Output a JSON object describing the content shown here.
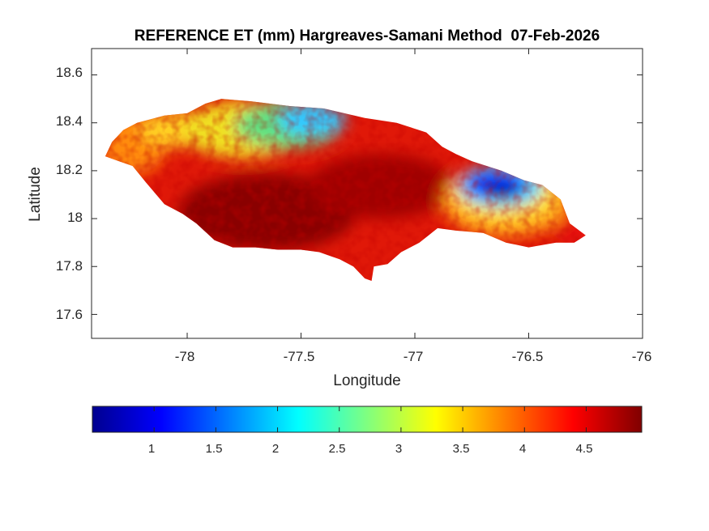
{
  "figure": {
    "title": "REFERENCE ET (mm) Hargreaves-Samani Method  07-Feb-2026",
    "xlabel": "Longitude",
    "ylabel": "Latitude",
    "xticks": [
      "-78",
      "-77.5",
      "-77",
      "-76.5",
      "-76"
    ],
    "yticks": [
      "18.6",
      "18.4",
      "18.2",
      "18",
      "17.8",
      "17.6"
    ],
    "colorbar_ticks": [
      "1",
      "1.5",
      "2",
      "2.5",
      "3",
      "3.5",
      "4",
      "4.5"
    ],
    "colormap": "jet"
  },
  "chart_data": {
    "type": "heatmap",
    "title": "REFERENCE ET (mm) Hargreaves-Samani Method  07-Feb-2026",
    "xlabel": "Longitude",
    "ylabel": "Latitude",
    "xlim": [
      -78.42,
      -76
    ],
    "ylim": [
      17.5,
      18.71
    ],
    "xticks": [
      -78,
      -77.5,
      -77,
      -76.5,
      -76
    ],
    "yticks": [
      17.6,
      17.8,
      18,
      18.2,
      18.4,
      18.6
    ],
    "colorbar": {
      "range": [
        0.5,
        4.95
      ],
      "ticks": [
        1,
        1.5,
        2,
        2.5,
        3,
        3.5,
        4,
        4.5
      ],
      "colormap": "jet",
      "placement": "bottom"
    },
    "region": "Jamaica",
    "outline": [
      [
        -78.36,
        18.26
      ],
      [
        -78.33,
        18.32
      ],
      [
        -78.28,
        18.37
      ],
      [
        -78.22,
        18.4
      ],
      [
        -78.1,
        18.43
      ],
      [
        -78.0,
        18.44
      ],
      [
        -77.92,
        18.48
      ],
      [
        -77.85,
        18.5
      ],
      [
        -77.72,
        18.49
      ],
      [
        -77.55,
        18.47
      ],
      [
        -77.4,
        18.46
      ],
      [
        -77.22,
        18.42
      ],
      [
        -77.08,
        18.4
      ],
      [
        -76.95,
        18.36
      ],
      [
        -76.88,
        18.3
      ],
      [
        -76.82,
        18.27
      ],
      [
        -76.75,
        18.24
      ],
      [
        -76.62,
        18.2
      ],
      [
        -76.52,
        18.16
      ],
      [
        -76.44,
        18.14
      ],
      [
        -76.36,
        18.08
      ],
      [
        -76.32,
        17.98
      ],
      [
        -76.25,
        17.93
      ],
      [
        -76.3,
        17.9
      ],
      [
        -76.38,
        17.9
      ],
      [
        -76.5,
        17.88
      ],
      [
        -76.6,
        17.9
      ],
      [
        -76.7,
        17.94
      ],
      [
        -76.82,
        17.95
      ],
      [
        -76.9,
        17.96
      ],
      [
        -76.98,
        17.9
      ],
      [
        -77.06,
        17.86
      ],
      [
        -77.12,
        17.81
      ],
      [
        -77.18,
        17.8
      ],
      [
        -77.19,
        17.74
      ],
      [
        -77.22,
        17.75
      ],
      [
        -77.27,
        17.8
      ],
      [
        -77.33,
        17.83
      ],
      [
        -77.42,
        17.86
      ],
      [
        -77.5,
        17.87
      ],
      [
        -77.6,
        17.87
      ],
      [
        -77.7,
        17.88
      ],
      [
        -77.8,
        17.88
      ],
      [
        -77.88,
        17.91
      ],
      [
        -77.96,
        17.98
      ],
      [
        -78.02,
        18.02
      ],
      [
        -78.1,
        18.06
      ],
      [
        -78.18,
        18.15
      ],
      [
        -78.24,
        18.22
      ],
      [
        -78.3,
        18.24
      ]
    ],
    "value_regions": [
      {
        "name": "western coast",
        "value": 3.8
      },
      {
        "name": "north-central coast",
        "value": 2.4
      },
      {
        "name": "south-central interior",
        "value": 4.8
      },
      {
        "name": "eastern interior",
        "value": 1.3
      },
      {
        "name": "eastern tip",
        "value": 4.2
      }
    ],
    "grid": false,
    "legend": "none"
  }
}
